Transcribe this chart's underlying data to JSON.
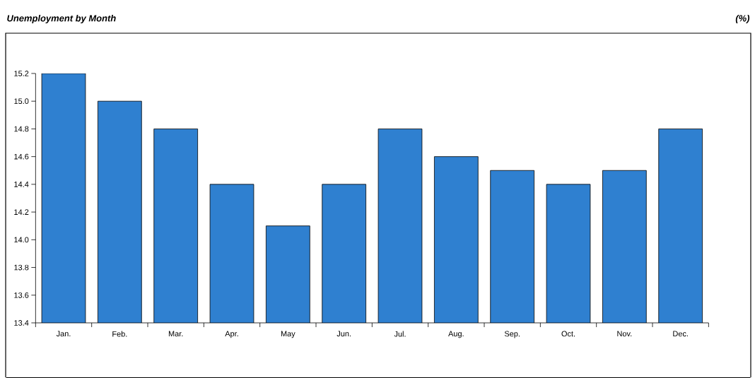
{
  "chart_data": {
    "type": "bar",
    "title": "Unemployment by Month",
    "annotations": [
      "(%)"
    ],
    "categories": [
      "Jan.",
      "Feb.",
      "Mar.",
      "Apr.",
      "May",
      "Jun.",
      "Jul.",
      "Aug.",
      "Sep.",
      "Oct.",
      "Nov.",
      "Dec."
    ],
    "values": [
      15.2,
      15.0,
      14.8,
      14.4,
      14.1,
      14.4,
      14.8,
      14.6,
      14.5,
      14.4,
      14.5,
      14.8
    ],
    "color": "#2f80d0",
    "ylim": [
      13.4,
      15.2
    ],
    "yticks": [
      {
        "value": 13.4,
        "label": "13.4"
      },
      {
        "value": 13.6,
        "label": "13.6"
      },
      {
        "value": 13.8,
        "label": "13.8"
      },
      {
        "value": 14.0,
        "label": "14.0"
      },
      {
        "value": 14.2,
        "label": "14.2"
      },
      {
        "value": 14.4,
        "label": "14.4"
      },
      {
        "value": 14.6,
        "label": "14.6"
      },
      {
        "value": 14.8,
        "label": "14.8"
      },
      {
        "value": 15.0,
        "label": "15.0"
      },
      {
        "value": 15.2,
        "label": "15.2"
      }
    ],
    "grid": false
  }
}
